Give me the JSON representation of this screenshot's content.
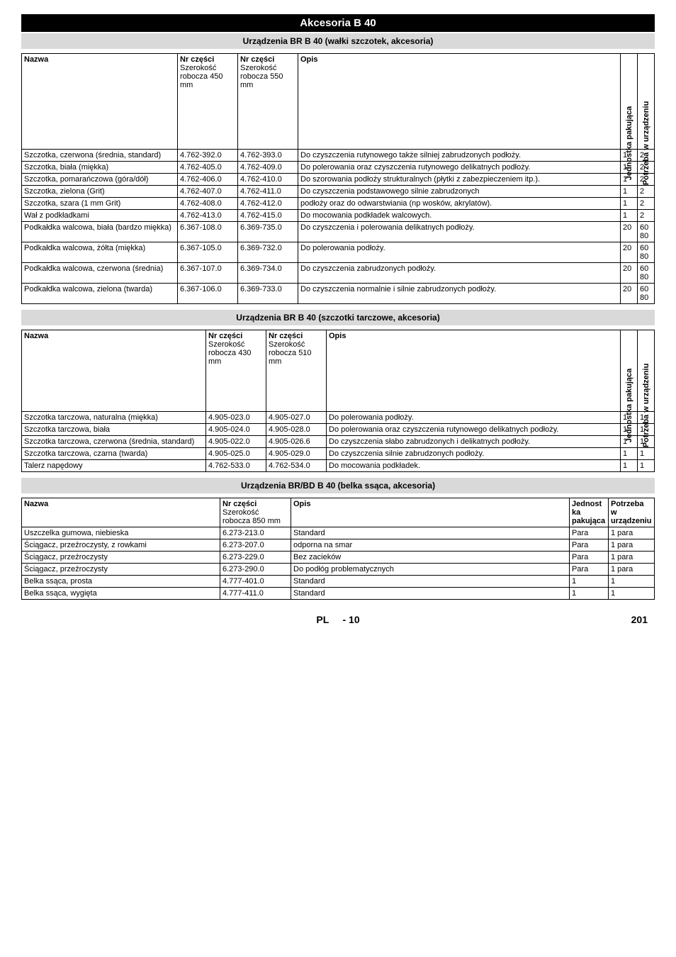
{
  "page": {
    "main_title": "Akcesoria B 40",
    "section1_title": "Urządzenia BR B 40 (wałki szczotek, akcesoria)",
    "section2_title": "Urządzenia BR B 40 (szczotki tarczowe, akcesoria)",
    "section3_title": "Urządzenia BR/BD B 40 (belka ssąca, akcesoria)",
    "footer_lang": "PL",
    "footer_dash": "-",
    "footer_page": "10",
    "footer_abs": "201"
  },
  "t1": {
    "h_name": "Nazwa",
    "h_nrA_l1": "Nr części",
    "h_nrA_l2": "Szerokość robocza 450 mm",
    "h_nrB_l1": "Nr części",
    "h_nrB_l2": "Szerokość robocza 550 mm",
    "h_opis": "Opis",
    "h_rot1": "Jednostka pakująca",
    "h_rot2": "Potrzeba w urządzeniu",
    "rows": [
      {
        "name": "Szczotka, czerwona (średnia, standard)",
        "a": "4.762-392.0",
        "b": "4.762-393.0",
        "opis": "Do czyszczenia rutynowego także silniej zabrudzonych podłoży.",
        "j": "1",
        "p": "2"
      },
      {
        "name": "Szczotka, biała (miękka)",
        "a": "4.762-405.0",
        "b": "4.762-409.0",
        "opis": "Do polerowania oraz czyszczenia rutynowego delikatnych podłoży.",
        "j": "1",
        "p": "2"
      },
      {
        "name": "Szczotka, pomarańczowa (góra/dół)",
        "a": "4.762-406.0",
        "b": "4.762-410.0",
        "opis": "Do szorowania podłoży strukturalnych (płytki z zabezpieczeniem itp.).",
        "j": "1",
        "p": "2"
      },
      {
        "name": "Szczotka, zielona (Grit)",
        "a": "4.762-407.0",
        "b": "4.762-411.0",
        "opis": "Do czyszczenia podstawowego silnie zabrudzonych",
        "j": "1",
        "p": "2"
      },
      {
        "name": "Szczotka, szara (1 mm Grit)",
        "a": "4.762-408.0",
        "b": "4.762-412.0",
        "opis": "podłoży oraz do odwarstwiania (np wosków, akrylatów).",
        "j": "1",
        "p": "2"
      },
      {
        "name": "Wał z podkładkami",
        "a": "4.762-413.0",
        "b": "4.762-415.0",
        "opis": "Do mocowania podkładek walcowych.",
        "j": "1",
        "p": "2"
      },
      {
        "name": "Podkałdka walcowa, biała (bardzo miękka)",
        "a": "6.367-108.0",
        "b": "6.369-735.0",
        "opis": "Do czyszczenia i polerowania delikatnych podłoży.",
        "j": "20",
        "p": "60 80"
      },
      {
        "name": "Podkałdka walcowa, żółta (miękka)",
        "a": "6.367-105.0",
        "b": "6.369-732.0",
        "opis": "Do polerowania podłoży.",
        "j": "20",
        "p": "60 80"
      },
      {
        "name": "Podkałdka walcowa, czerwona (średnia)",
        "a": "6.367-107.0",
        "b": "6.369-734.0",
        "opis": "Do czyszczenia zabrudzonych podłoży.",
        "j": "20",
        "p": "60 80"
      },
      {
        "name": "Podkałdka walcowa, zielona (twarda)",
        "a": "6.367-106.0",
        "b": "6.369-733.0",
        "opis": "Do czyszczenia normalnie i silnie zabrudzonych podłoży.",
        "j": "20",
        "p": "60 80"
      }
    ]
  },
  "t2": {
    "h_name": "Nazwa",
    "h_nrA_l1": "Nr części",
    "h_nrA_l2": "Szerokość robocza 430 mm",
    "h_nrB_l1": "Nr części",
    "h_nrB_l2": "Szerokość robocza 510 mm",
    "h_opis": "Opis",
    "h_rot1": "Jednostka pakująca",
    "h_rot2": "Potrzeba w urządzeniu",
    "rows": [
      {
        "name": "Szczotka tarczowa, naturalna (miękka)",
        "a": "4.905-023.0",
        "b": "4.905-027.0",
        "opis": "Do polerowania podłoży.",
        "j": "1",
        "p": "1"
      },
      {
        "name": "Szczotka tarczowa, biała",
        "a": "4.905-024.0",
        "b": "4.905-028.0",
        "opis": "Do polerowania oraz czyszczenia rutynowego delikatnych podłoży.",
        "j": "1",
        "p": "1"
      },
      {
        "name": "Szczotka tarczowa, czerwona (średnia, standard)",
        "a": "4.905-022.0",
        "b": "4.905-026.6",
        "opis": "Do czyszczenia słabo zabrudzonych i delikatnych podłoży.",
        "j": "1",
        "p": "1"
      },
      {
        "name": "Szczotka tarczowa, czarna (twarda)",
        "a": "4.905-025.0",
        "b": "4.905-029.0",
        "opis": "Do czyszczenia silnie zabrudzonych podłoży.",
        "j": "1",
        "p": "1"
      },
      {
        "name": "Talerz napędowy",
        "a": "4.762-533.0",
        "b": "4.762-534.0",
        "opis": "Do mocowania podkładek.",
        "j": "1",
        "p": "1"
      }
    ]
  },
  "t3": {
    "h_name": "Nazwa",
    "h_nr_l1": "Nr części",
    "h_nr_l2": "Szerokość robocza 850 mm",
    "h_opis": "Opis",
    "h_jed": "Jednostka pakująca",
    "h_pot": "Potrzeba w urządzeniu",
    "rows": [
      {
        "name": "Uszczelka gumowa, niebieska",
        "nr": "6.273-213.0",
        "opis": "Standard",
        "j": "Para",
        "p": "1 para"
      },
      {
        "name": "Ściągacz, przeźroczysty, z rowkami",
        "nr": "6.273-207.0",
        "opis": "odporna na smar",
        "j": "Para",
        "p": "1 para"
      },
      {
        "name": "Ściągacz, przeźroczysty",
        "nr": "6.273-229.0",
        "opis": "Bez zacieków",
        "j": "Para",
        "p": "1 para"
      },
      {
        "name": "Ściągacz, przeźroczysty",
        "nr": "6.273-290.0",
        "opis": "Do podłóg problematycznych",
        "j": "Para",
        "p": "1 para"
      },
      {
        "name": "Belka ssąca, prosta",
        "nr": "4.777-401.0",
        "opis": "Standard",
        "j": "1",
        "p": "1"
      },
      {
        "name": "Belka ssąca, wygięta",
        "nr": "4.777-411.0",
        "opis": "Standard",
        "j": "1",
        "p": "1"
      }
    ]
  }
}
